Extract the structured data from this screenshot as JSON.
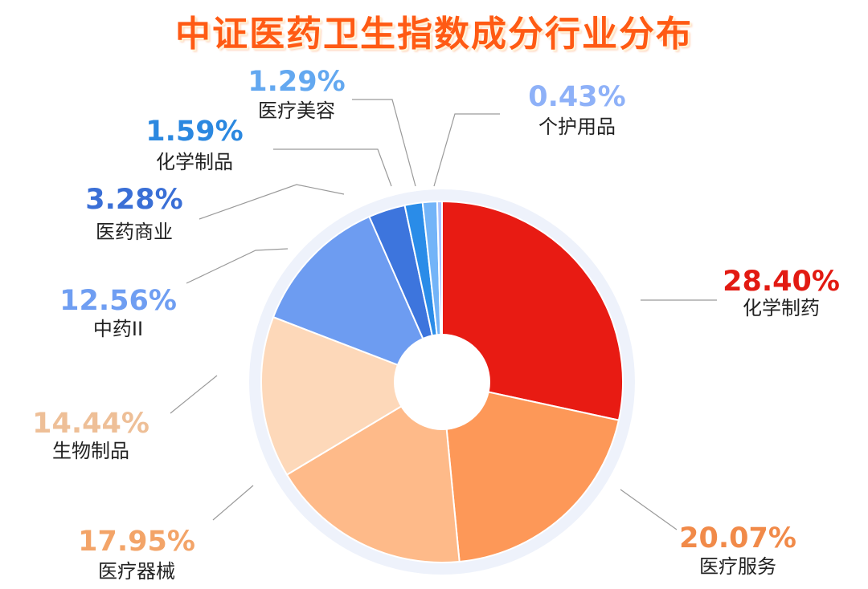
{
  "title": "中证医药卫生指数成分行业分布",
  "chart_data": {
    "type": "pie",
    "title": "中证医药卫生指数成分行业分布",
    "unit": "%",
    "donut": true,
    "slices": [
      {
        "label": "化学制药",
        "value": 28.4,
        "value_label": "28.40%",
        "color": "#e81b13",
        "label_color": "#e21a12"
      },
      {
        "label": "医疗服务",
        "value": 20.07,
        "value_label": "20.07%",
        "color": "#fd9858",
        "label_color": "#f18a49"
      },
      {
        "label": "医疗器械",
        "value": 17.95,
        "value_label": "17.95%",
        "color": "#feba89",
        "label_color": "#f3a468"
      },
      {
        "label": "生物制品",
        "value": 14.44,
        "value_label": "14.44%",
        "color": "#fdd8b9",
        "label_color": "#eebf97"
      },
      {
        "label": "中药II",
        "value": 12.56,
        "value_label": "12.56%",
        "color": "#6d9cf1",
        "label_color": "#6f9ef2"
      },
      {
        "label": "医药商业",
        "value": 3.28,
        "value_label": "3.28%",
        "color": "#3d75dd",
        "label_color": "#3a6fd6"
      },
      {
        "label": "化学制品",
        "value": 1.59,
        "value_label": "1.59%",
        "color": "#2a8ce8",
        "label_color": "#2b88e0"
      },
      {
        "label": "医疗美容",
        "value": 1.29,
        "value_label": "1.29%",
        "color": "#73b4f8",
        "label_color": "#63a8f0"
      },
      {
        "label": "个护用品",
        "value": 0.43,
        "value_label": "0.43%",
        "color": "#a9c3ff",
        "label_color": "#8eb1f8"
      }
    ]
  }
}
